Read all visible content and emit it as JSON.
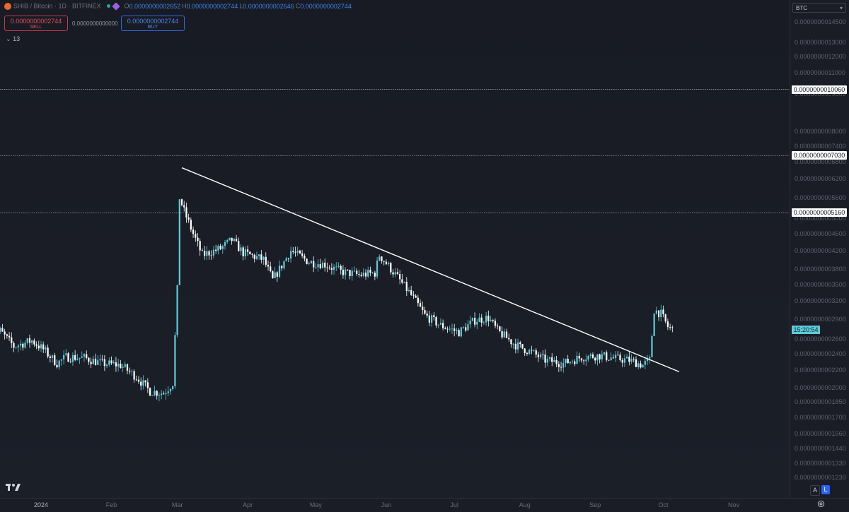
{
  "header": {
    "title": "SHIB / Bitcoin · 1D · BITFINEX",
    "ohlc": [
      {
        "key": "O",
        "value": "0.0000000002652"
      },
      {
        "key": "H",
        "value": "0.0000000002744"
      },
      {
        "key": "L",
        "value": "0.0000000002646"
      },
      {
        "key": "C",
        "value": "0.0000000002744"
      }
    ]
  },
  "trade": {
    "sell_price": "0.0000000002744",
    "sell_label": "SELL",
    "spread": "0.0000000000000",
    "buy_price": "0.0000000002744",
    "buy_label": "BUY"
  },
  "indicators": {
    "count": "13"
  },
  "currency": "BTC",
  "countdown": "15:20:54",
  "scale_buttons": {
    "auto": "A",
    "log": "L"
  },
  "colors": {
    "background": "#1a1d25",
    "candle_up": "#5fc9d8",
    "candle_down": "#ffffff",
    "trendline": "#ffffff",
    "sell": "#e0525f",
    "buy": "#4f86ee",
    "log_active": "#2962ff"
  },
  "chart_data": {
    "type": "candlestick",
    "scale": "log",
    "ylim": [
      1.14e-10,
      1.5e-09
    ],
    "price_ticks": [
      "0.0000000014500",
      "0.0000000013000",
      "0.0000000012000",
      "0.0000000011000",
      "0.0000000009800",
      "0.0000000008000",
      "0.0000000007400",
      "0.0000000006800",
      "0.0000000006200",
      "0.0000000005600",
      "0.0000000005000",
      "0.0000000004600",
      "0.0000000004200",
      "0.0000000003800",
      "0.0000000003500",
      "0.0000000003200",
      "0.0000000002900",
      "0.0000000002600",
      "0.0000000002400",
      "0.0000000002200",
      "0.0000000002000",
      "0.0000000001850",
      "0.0000000001700",
      "0.0000000001560",
      "0.0000000001440",
      "0.0000000001330",
      "0.0000000001230"
    ],
    "x_ticks": [
      {
        "label": "2024",
        "date": "2024-01-01"
      },
      {
        "label": "Feb",
        "date": "2024-02-01"
      },
      {
        "label": "Mar",
        "date": "2024-03-01"
      },
      {
        "label": "Apr",
        "date": "2024-04-01"
      },
      {
        "label": "May",
        "date": "2024-05-01"
      },
      {
        "label": "Jun",
        "date": "2024-06-01"
      },
      {
        "label": "Jul",
        "date": "2024-07-01"
      },
      {
        "label": "Aug",
        "date": "2024-08-01"
      },
      {
        "label": "Sep",
        "date": "2024-09-01"
      },
      {
        "label": "Oct",
        "date": "2024-10-01"
      },
      {
        "label": "Nov",
        "date": "2024-11-01"
      }
    ],
    "horizontal_lines": [
      {
        "label": "0.0000000010060",
        "price": 1.006e-09
      },
      {
        "label": "0.0000000007030",
        "price": 7.03e-10
      },
      {
        "label": "0.0000000005160",
        "price": 5.16e-10
      }
    ],
    "trendline": {
      "start": {
        "date": "2024-03-03",
        "price": 6.58e-10
      },
      "end": {
        "date": "2024-10-08",
        "price": 2.18e-10
      }
    },
    "price_path": [
      {
        "date": "2023-12-10",
        "price": 2.64e-10
      },
      {
        "date": "2023-12-14",
        "price": 2.72e-10
      },
      {
        "date": "2023-12-20",
        "price": 2.5e-10
      },
      {
        "date": "2023-12-28",
        "price": 2.58e-10
      },
      {
        "date": "2024-01-02",
        "price": 2.46e-10
      },
      {
        "date": "2024-01-08",
        "price": 2.28e-10
      },
      {
        "date": "2024-01-12",
        "price": 2.36e-10
      },
      {
        "date": "2024-01-20",
        "price": 2.35e-10
      },
      {
        "date": "2024-01-28",
        "price": 2.28e-10
      },
      {
        "date": "2024-02-05",
        "price": 2.26e-10
      },
      {
        "date": "2024-02-12",
        "price": 2.12e-10
      },
      {
        "date": "2024-02-18",
        "price": 1.96e-10
      },
      {
        "date": "2024-02-24",
        "price": 1.94e-10
      },
      {
        "date": "2024-02-28",
        "price": 2.05e-10
      },
      {
        "date": "2024-03-01",
        "price": 3.4e-10
      },
      {
        "date": "2024-03-02",
        "price": 5.6e-10
      },
      {
        "date": "2024-03-04",
        "price": 5.2e-10
      },
      {
        "date": "2024-03-08",
        "price": 4.6e-10
      },
      {
        "date": "2024-03-12",
        "price": 4.1e-10
      },
      {
        "date": "2024-03-20",
        "price": 4.25e-10
      },
      {
        "date": "2024-03-25",
        "price": 4.45e-10
      },
      {
        "date": "2024-03-30",
        "price": 4.15e-10
      },
      {
        "date": "2024-04-08",
        "price": 4e-10
      },
      {
        "date": "2024-04-12",
        "price": 3.58e-10
      },
      {
        "date": "2024-04-20",
        "price": 4.2e-10
      },
      {
        "date": "2024-04-28",
        "price": 3.95e-10
      },
      {
        "date": "2024-05-05",
        "price": 3.9e-10
      },
      {
        "date": "2024-05-12",
        "price": 3.75e-10
      },
      {
        "date": "2024-05-20",
        "price": 3.68e-10
      },
      {
        "date": "2024-05-27",
        "price": 3.72e-10
      },
      {
        "date": "2024-05-29",
        "price": 4.1e-10
      },
      {
        "date": "2024-06-04",
        "price": 3.75e-10
      },
      {
        "date": "2024-06-12",
        "price": 3.3e-10
      },
      {
        "date": "2024-06-18",
        "price": 2.96e-10
      },
      {
        "date": "2024-06-25",
        "price": 2.8e-10
      },
      {
        "date": "2024-07-03",
        "price": 2.7e-10
      },
      {
        "date": "2024-07-10",
        "price": 2.88e-10
      },
      {
        "date": "2024-07-16",
        "price": 2.92e-10
      },
      {
        "date": "2024-07-20",
        "price": 2.72e-10
      },
      {
        "date": "2024-07-28",
        "price": 2.52e-10
      },
      {
        "date": "2024-08-04",
        "price": 2.42e-10
      },
      {
        "date": "2024-08-10",
        "price": 2.32e-10
      },
      {
        "date": "2024-08-18",
        "price": 2.28e-10
      },
      {
        "date": "2024-08-26",
        "price": 2.36e-10
      },
      {
        "date": "2024-09-03",
        "price": 2.38e-10
      },
      {
        "date": "2024-09-10",
        "price": 2.34e-10
      },
      {
        "date": "2024-09-16",
        "price": 2.32e-10
      },
      {
        "date": "2024-09-22",
        "price": 2.26e-10
      },
      {
        "date": "2024-09-25",
        "price": 2.32e-10
      },
      {
        "date": "2024-09-27",
        "price": 3.05e-10
      },
      {
        "date": "2024-09-30",
        "price": 2.98e-10
      },
      {
        "date": "2024-10-03",
        "price": 2.78e-10
      },
      {
        "date": "2024-10-05",
        "price": 2.74e-10
      }
    ]
  }
}
